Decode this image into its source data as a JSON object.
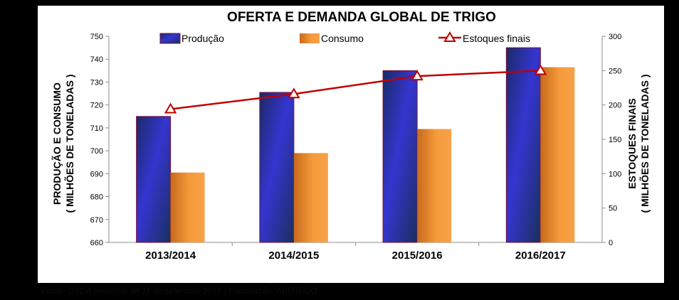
{
  "chart_data": {
    "type": "bar",
    "title": "OFERTA E DEMANDA GLOBAL DE TRIGO",
    "categories": [
      "2013/2014",
      "2014/2015",
      "2015/2016",
      "2016/2017"
    ],
    "series": [
      {
        "name": "Produção",
        "kind": "bar",
        "axis": "left",
        "values": [
          715,
          725.5,
          735,
          745
        ],
        "color": "#3333cc"
      },
      {
        "name": "Consumo",
        "kind": "bar",
        "axis": "left",
        "values": [
          690.5,
          699,
          709.5,
          736.5
        ],
        "color": "#f59a3a"
      },
      {
        "name": "Estoques finais",
        "kind": "line",
        "axis": "right",
        "values": [
          194,
          216,
          242,
          250
        ],
        "color": "#c00000"
      }
    ],
    "ylabel_left": [
      "PRODUÇÃO E CONSUMO",
      "( MILHÕES DE TONELADAS )"
    ],
    "ylabel_right": [
      "ESTOQUES FINAIS",
      "( MILHÕES DE TONELADAS )"
    ],
    "ylim_left": [
      660,
      750
    ],
    "yticks_left": [
      660,
      670,
      680,
      690,
      700,
      710,
      720,
      730,
      740,
      750
    ],
    "ylim_right": [
      0,
      300
    ],
    "yticks_right": [
      0,
      50,
      100,
      150,
      200,
      250,
      300
    ],
    "grid": false,
    "legend_position": "top"
  },
  "source_note": "Fonte: USDA (relatório de 11 de setembro 2016 | Elaboração: ABITRIGO"
}
